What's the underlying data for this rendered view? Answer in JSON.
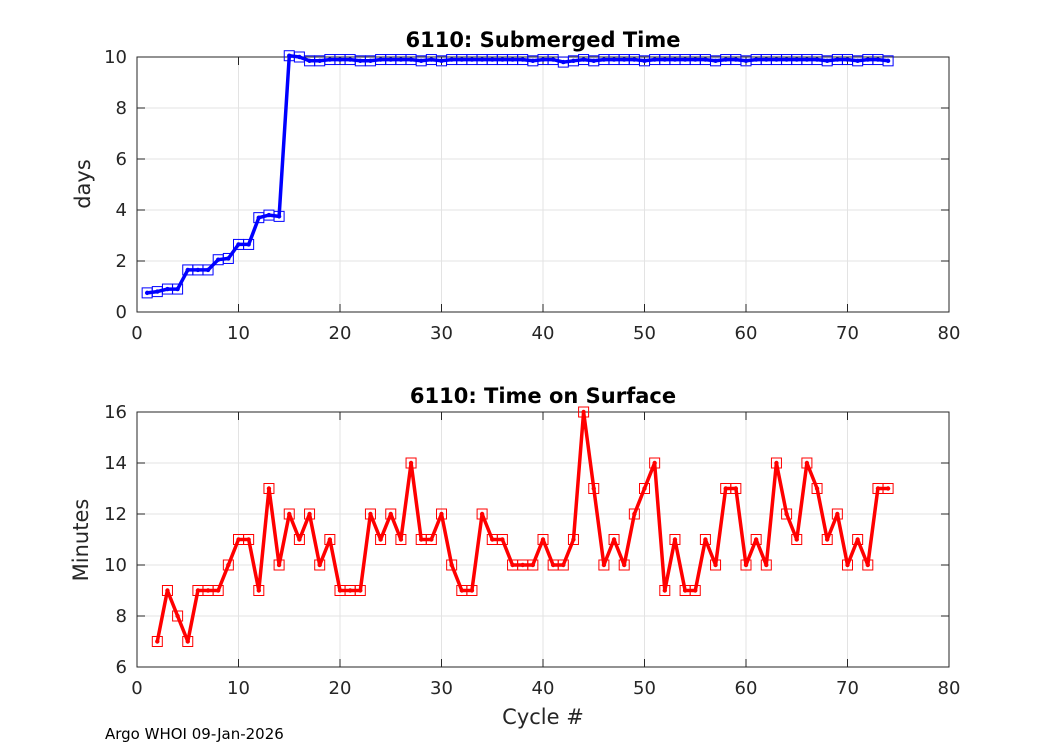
{
  "footer_text": "Argo WHOI 09-Jan-2026",
  "chart_data": [
    {
      "type": "line",
      "title": "6110: Submerged Time",
      "xlabel": "",
      "ylabel": "days",
      "xlim": [
        0,
        80
      ],
      "ylim": [
        0,
        10
      ],
      "xticks": [
        0,
        10,
        20,
        30,
        40,
        50,
        60,
        70,
        80
      ],
      "yticks": [
        0,
        2,
        4,
        6,
        8,
        10
      ],
      "grid": true,
      "color": "#0000ff",
      "x": [
        1,
        2,
        3,
        4,
        5,
        6,
        7,
        8,
        9,
        10,
        11,
        12,
        13,
        14,
        15,
        16,
        17,
        18,
        19,
        20,
        21,
        22,
        23,
        24,
        25,
        26,
        27,
        28,
        29,
        30,
        31,
        32,
        33,
        34,
        35,
        36,
        37,
        38,
        39,
        40,
        41,
        42,
        43,
        44,
        45,
        46,
        47,
        48,
        49,
        50,
        51,
        52,
        53,
        54,
        55,
        56,
        57,
        58,
        59,
        60,
        61,
        62,
        63,
        64,
        65,
        66,
        67,
        68,
        69,
        70,
        71,
        72,
        73,
        74
      ],
      "y": [
        0.75,
        0.8,
        0.9,
        0.9,
        1.65,
        1.65,
        1.65,
        2.05,
        2.1,
        2.65,
        2.65,
        3.7,
        3.8,
        3.75,
        10.05,
        10.0,
        9.85,
        9.85,
        9.9,
        9.9,
        9.9,
        9.85,
        9.85,
        9.9,
        9.9,
        9.9,
        9.9,
        9.85,
        9.9,
        9.85,
        9.9,
        9.9,
        9.9,
        9.9,
        9.9,
        9.9,
        9.9,
        9.9,
        9.85,
        9.9,
        9.9,
        9.8,
        9.85,
        9.9,
        9.85,
        9.9,
        9.9,
        9.9,
        9.9,
        9.85,
        9.9,
        9.9,
        9.9,
        9.9,
        9.9,
        9.9,
        9.85,
        9.9,
        9.9,
        9.85,
        9.9,
        9.9,
        9.9,
        9.9,
        9.9,
        9.9,
        9.9,
        9.85,
        9.9,
        9.9,
        9.85,
        9.9,
        9.9,
        9.85
      ]
    },
    {
      "type": "line",
      "title": "6110: Time on Surface",
      "xlabel": "Cycle #",
      "ylabel": "Minutes",
      "xlim": [
        0,
        80
      ],
      "ylim": [
        6,
        16
      ],
      "xticks": [
        0,
        10,
        20,
        30,
        40,
        50,
        60,
        70,
        80
      ],
      "yticks": [
        6,
        8,
        10,
        12,
        14,
        16
      ],
      "grid": true,
      "color": "#ff0000",
      "x": [
        2,
        3,
        4,
        5,
        6,
        7,
        8,
        9,
        10,
        11,
        12,
        13,
        14,
        15,
        16,
        17,
        18,
        19,
        20,
        21,
        22,
        23,
        24,
        25,
        26,
        27,
        28,
        29,
        30,
        31,
        32,
        33,
        34,
        35,
        36,
        37,
        38,
        39,
        40,
        41,
        42,
        43,
        44,
        45,
        46,
        47,
        48,
        49,
        50,
        51,
        52,
        53,
        54,
        55,
        56,
        57,
        58,
        59,
        60,
        61,
        62,
        63,
        64,
        65,
        66,
        67,
        68,
        69,
        70,
        71,
        72,
        73,
        74
      ],
      "y": [
        7,
        9,
        8,
        7,
        9,
        9,
        9,
        10,
        11,
        11,
        9,
        13,
        10,
        12,
        11,
        12,
        10,
        11,
        9,
        9,
        9,
        12,
        11,
        12,
        11,
        14,
        11,
        11,
        12,
        10,
        9,
        9,
        12,
        11,
        11,
        10,
        10,
        10,
        11,
        10,
        10,
        11,
        16,
        13,
        10,
        11,
        10,
        12,
        13,
        14,
        9,
        11,
        9,
        9,
        11,
        10,
        13,
        13,
        10,
        11,
        10,
        14,
        12,
        11,
        14,
        13,
        11,
        12,
        10,
        11,
        10,
        13,
        13
      ]
    }
  ]
}
